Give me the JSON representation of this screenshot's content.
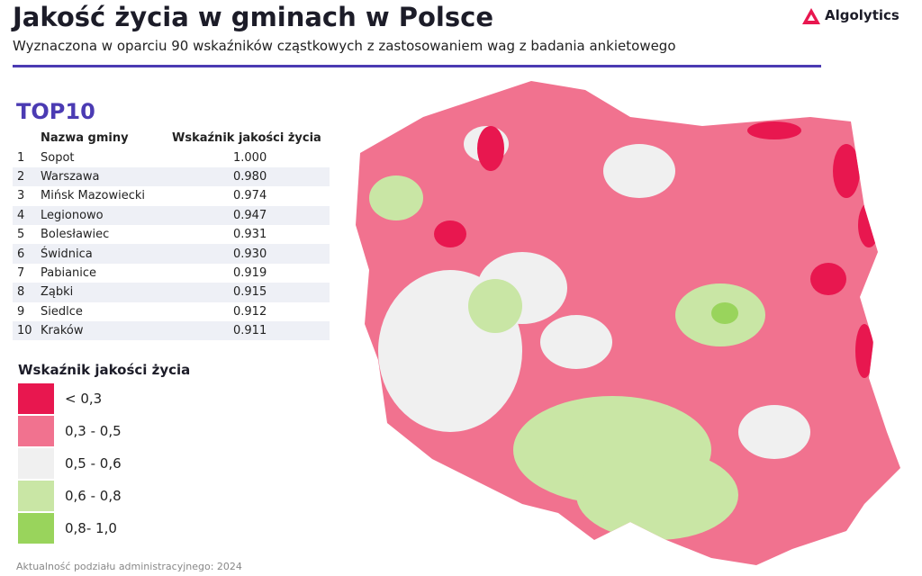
{
  "header": {
    "title": "Jakość życia w gminach w Polsce",
    "subtitle": "Wyznaczona w oparciu 90 wskaźników cząstkowych z zastosowaniem wag z badania ankietowego",
    "logo": "Algolytics"
  },
  "table": {
    "title": "TOP10",
    "columns": [
      "Nazwa gminy",
      "Wskaźnik jakości życia"
    ],
    "rows": [
      [
        "1",
        "Sopot",
        "1.000"
      ],
      [
        "2",
        "Warszawa",
        "0.980"
      ],
      [
        "3",
        "Mińsk Mazowiecki",
        "0.974"
      ],
      [
        "4",
        "Legionowo",
        "0.947"
      ],
      [
        "5",
        "Bolesławiec",
        "0.931"
      ],
      [
        "6",
        "Świdnica",
        "0.930"
      ],
      [
        "7",
        "Pabianice",
        "0.919"
      ],
      [
        "8",
        "Ząbki",
        "0.915"
      ],
      [
        "9",
        "Siedlce",
        "0.912"
      ],
      [
        "10",
        "Kraków",
        "0.911"
      ]
    ]
  },
  "legend": {
    "title": "Wskaźnik jakości życia",
    "items": [
      {
        "label": "< 0,3",
        "color": "#e8174f"
      },
      {
        "label": "0,3 - 0,5",
        "color": "#f1728f"
      },
      {
        "label": "0,5 - 0,6",
        "color": "#f0f0f0"
      },
      {
        "label": "0,6 - 0,8",
        "color": "#c9e6a5"
      },
      {
        "label": "0,8- 1,0",
        "color": "#99d45c"
      }
    ]
  },
  "footnote": "Aktualność podziału administracyjnego: 2024"
}
